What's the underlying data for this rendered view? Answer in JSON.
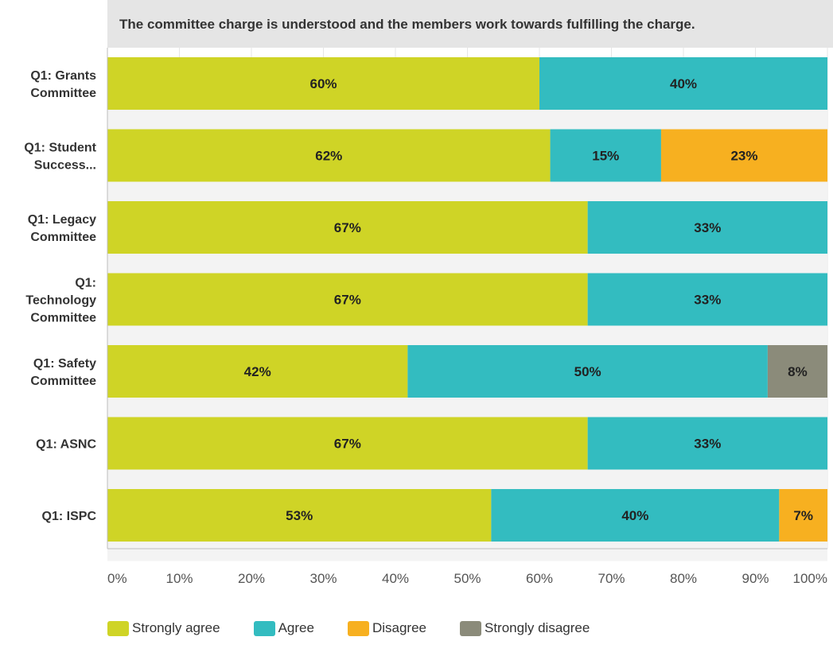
{
  "chart_data": {
    "type": "bar",
    "orientation": "horizontal",
    "stacked": true,
    "title": "The committee charge is understood and the members work towards fulfilling the charge.",
    "categories": [
      [
        "Q1: Grants",
        "Committee"
      ],
      [
        "Q1: Student",
        "Success..."
      ],
      [
        "Q1: Legacy",
        "Committee"
      ],
      [
        "Q1:",
        "Technology",
        "Committee"
      ],
      [
        "Q1: Safety",
        "Committee"
      ],
      [
        "Q1: ASNC"
      ],
      [
        "Q1: ISPC"
      ]
    ],
    "series": [
      {
        "name": "Strongly agree",
        "color": "#cfd426",
        "values": [
          60,
          61.5,
          66.7,
          66.7,
          41.7,
          66.7,
          53.3
        ],
        "labels": [
          "60%",
          "62%",
          "67%",
          "67%",
          "42%",
          "67%",
          "53%"
        ]
      },
      {
        "name": "Agree",
        "color": "#33bcc0",
        "values": [
          40,
          15.4,
          33.3,
          33.3,
          50,
          33.3,
          40
        ],
        "labels": [
          "40%",
          "15%",
          "33%",
          "33%",
          "50%",
          "33%",
          "40%"
        ]
      },
      {
        "name": "Disagree",
        "color": "#f7b020",
        "values": [
          0,
          23.1,
          0,
          0,
          0,
          0,
          6.7
        ],
        "labels": [
          "",
          "23%",
          "",
          "",
          "",
          "",
          "7%"
        ]
      },
      {
        "name": "Strongly disagree",
        "color": "#8b8b7a",
        "values": [
          0,
          0,
          0,
          0,
          8.3,
          0,
          0
        ],
        "labels": [
          "",
          "",
          "",
          "",
          "8%",
          "",
          ""
        ]
      }
    ],
    "xticks": [
      "0%",
      "10%",
      "20%",
      "30%",
      "40%",
      "50%",
      "60%",
      "70%",
      "80%",
      "90%",
      "100%"
    ],
    "xlim": [
      0,
      100
    ],
    "grid": true,
    "legend_position": "bottom"
  }
}
